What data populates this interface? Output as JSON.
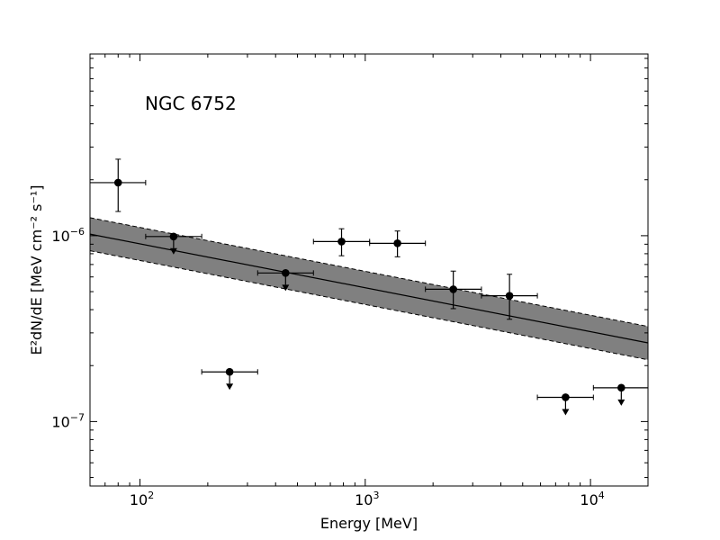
{
  "chart_data": {
    "type": "scatter",
    "title": "",
    "annotation": "NGC 6752",
    "xlabel": "Energy [MeV]",
    "ylabel": "E²dN/dE [MeV cm⁻² s⁻¹]",
    "xscale": "log",
    "yscale": "log",
    "xlim": [
      60,
      18000
    ],
    "ylim": [
      4.5e-08,
      9.5e-06
    ],
    "x_ticks": [
      {
        "value": 100,
        "base": "10",
        "exp": "2"
      },
      {
        "value": 1000,
        "base": "10",
        "exp": "3"
      },
      {
        "value": 10000,
        "base": "10",
        "exp": "4"
      }
    ],
    "y_ticks": [
      {
        "value": 1e-07,
        "base": "10",
        "exp": "−7"
      },
      {
        "value": 1e-06,
        "base": "10",
        "exp": "−6"
      }
    ],
    "model_fit": {
      "x": [
        60,
        18000
      ],
      "y": [
        1.02e-06,
        2.65e-07
      ],
      "band_upper": [
        1.25e-06,
        3.25e-07
      ],
      "band_lower": [
        8.3e-07,
        2.15e-07
      ]
    },
    "points": [
      {
        "x": 80,
        "y": 1.93e-06,
        "xerr": [
          60,
          106
        ],
        "yerr": [
          1.35e-06,
          2.58e-06
        ],
        "upper_limit": false
      },
      {
        "x": 141,
        "y": 9.9e-07,
        "xerr": [
          106,
          188
        ],
        "upper_limit": true
      },
      {
        "x": 250,
        "y": 1.85e-07,
        "xerr": [
          188,
          333
        ],
        "upper_limit": true
      },
      {
        "x": 443,
        "y": 6.3e-07,
        "xerr": [
          333,
          589
        ],
        "upper_limit": true
      },
      {
        "x": 785,
        "y": 9.3e-07,
        "xerr": [
          589,
          1046
        ],
        "yerr": [
          7.8e-07,
          1.09e-06
        ],
        "upper_limit": false
      },
      {
        "x": 1390,
        "y": 9.1e-07,
        "xerr": [
          1046,
          1850
        ],
        "yerr": [
          7.7e-07,
          1.06e-06
        ],
        "upper_limit": false
      },
      {
        "x": 2460,
        "y": 5.15e-07,
        "xerr": [
          1850,
          3280
        ],
        "yerr": [
          4.05e-07,
          6.45e-07
        ],
        "upper_limit": false
      },
      {
        "x": 4370,
        "y": 4.75e-07,
        "xerr": [
          3280,
          5810
        ],
        "yerr": [
          3.55e-07,
          6.2e-07
        ],
        "upper_limit": false
      },
      {
        "x": 7750,
        "y": 1.35e-07,
        "xerr": [
          5810,
          10300
        ],
        "upper_limit": true
      },
      {
        "x": 13700,
        "y": 1.52e-07,
        "xerr": [
          10300,
          18000
        ],
        "upper_limit": true
      }
    ]
  }
}
